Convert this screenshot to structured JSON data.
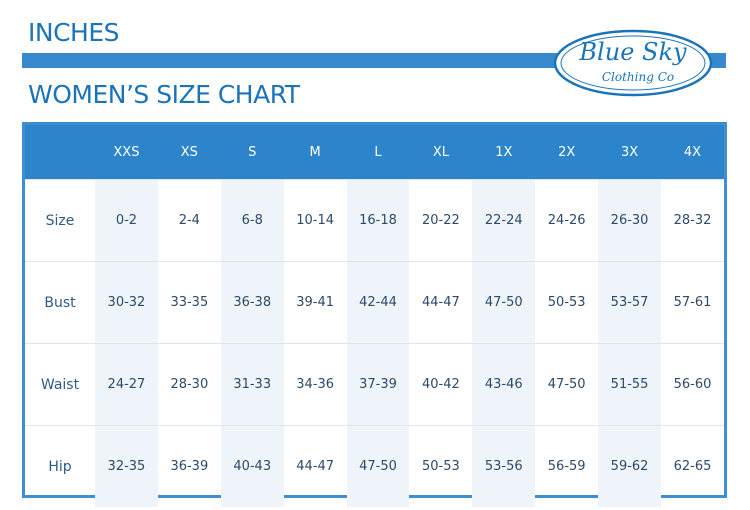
{
  "header": {
    "title": "INCHES",
    "subtitle": "WOMEN’S SIZE CHART"
  },
  "logo": {
    "name": "Blue Sky",
    "tagline": "Clothing Co"
  },
  "table": {
    "columns": [
      "XXS",
      "XS",
      "S",
      "M",
      "L",
      "XL",
      "1X",
      "2X",
      "3X",
      "4X"
    ],
    "rows": [
      [
        "Size",
        "0-2",
        "2-4",
        "6-8",
        "10-14",
        "16-18",
        "20-22",
        "22-24",
        "24-26",
        "26-30",
        "28-32"
      ],
      [
        "Bust",
        "30-32",
        "33-35",
        "36-38",
        "39-41",
        "42-44",
        "44-47",
        "47-50",
        "50-53",
        "53-57",
        "57-61"
      ],
      [
        "Waist",
        "24-27",
        "28-30",
        "31-33",
        "34-36",
        "37-39",
        "40-42",
        "43-46",
        "47-50",
        "51-55",
        "56-60"
      ],
      [
        "Hip",
        "32-35",
        "36-39",
        "40-43",
        "44-47",
        "47-50",
        "50-53",
        "53-56",
        "56-59",
        "59-62",
        "62-65"
      ]
    ]
  }
}
